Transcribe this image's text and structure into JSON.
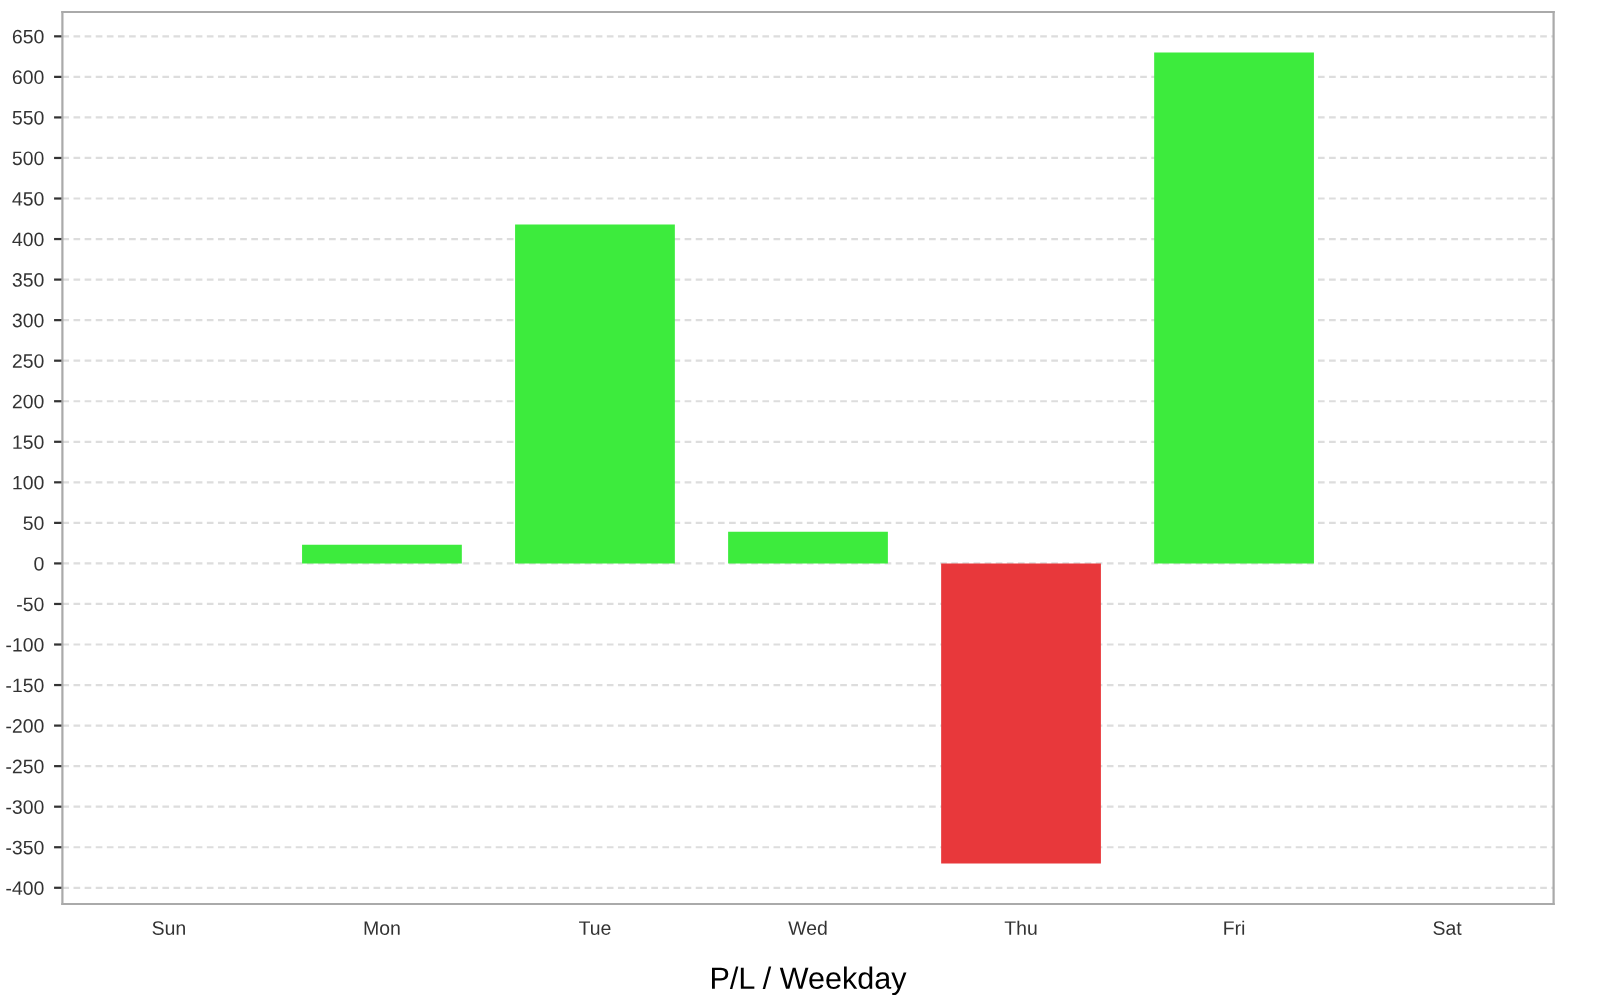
{
  "chart_data": {
    "type": "bar",
    "xlabel": "P/L / Weekday",
    "categories": [
      "Sun",
      "Mon",
      "Tue",
      "Wed",
      "Thu",
      "Fri",
      "Sat"
    ],
    "values": [
      null,
      23,
      418,
      39,
      -370,
      630,
      null
    ],
    "colors": [
      "#3deb3d",
      "#3deb3d",
      "#3deb3d",
      "#3deb3d",
      "#e8383b",
      "#3deb3d",
      "#3deb3d"
    ],
    "ylim": [
      -420,
      680
    ],
    "yticks": [
      -400,
      -350,
      -300,
      -250,
      -200,
      -150,
      -100,
      -50,
      0,
      50,
      100,
      150,
      200,
      250,
      300,
      350,
      400,
      450,
      500,
      550,
      600,
      650
    ],
    "grid": "y"
  }
}
